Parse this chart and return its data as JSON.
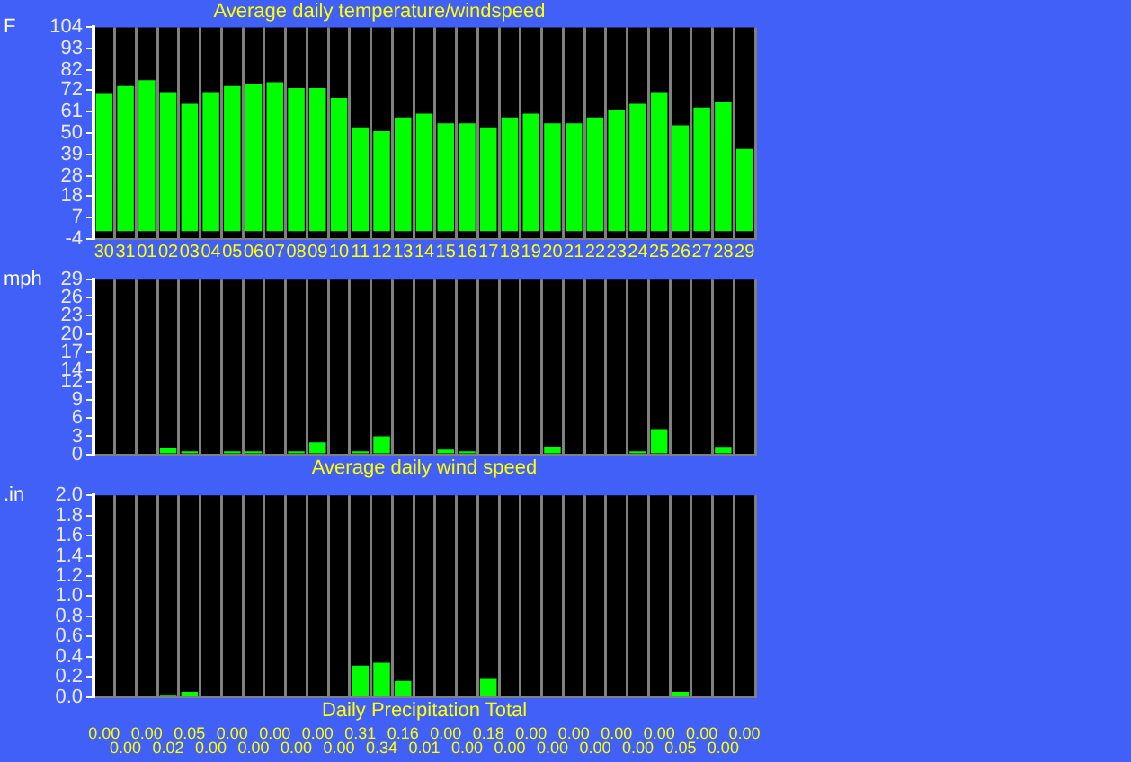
{
  "chart_data": [
    {
      "type": "bar",
      "title": "Average daily temperature/windspeed",
      "ylabel": "F",
      "categories": [
        "30",
        "31",
        "01",
        "02",
        "03",
        "04",
        "05",
        "06",
        "07",
        "08",
        "09",
        "10",
        "11",
        "12",
        "13",
        "14",
        "15",
        "16",
        "17",
        "18",
        "19",
        "20",
        "21",
        "22",
        "23",
        "24",
        "25",
        "26",
        "27",
        "28",
        "29"
      ],
      "values": [
        70,
        74,
        77,
        71,
        65,
        71,
        74,
        75,
        76,
        73,
        73,
        68,
        53,
        51,
        58,
        60,
        55,
        55,
        53,
        58,
        60,
        55,
        55,
        58,
        62,
        65,
        71,
        54,
        63,
        66,
        42
      ],
      "color": "#00ff00",
      "ylim": [
        -4,
        104
      ],
      "yticks": [
        -4,
        7,
        18,
        28,
        39,
        50,
        61,
        72,
        82,
        93,
        104
      ],
      "grid": "x"
    },
    {
      "type": "bar",
      "xlabel": "Average daily wind speed",
      "ylabel": "mph",
      "categories": [
        "30",
        "31",
        "01",
        "02",
        "03",
        "04",
        "05",
        "06",
        "07",
        "08",
        "09",
        "10",
        "11",
        "12",
        "13",
        "14",
        "15",
        "16",
        "17",
        "18",
        "19",
        "20",
        "21",
        "22",
        "23",
        "24",
        "25",
        "26",
        "27",
        "28",
        "29"
      ],
      "values": [
        0,
        0,
        0,
        1,
        0.5,
        0,
        0.5,
        0.5,
        0,
        0.5,
        2,
        0,
        0.5,
        3,
        0,
        0,
        0.8,
        0.5,
        0,
        0,
        0,
        1.3,
        0,
        0,
        0,
        0.5,
        4.2,
        0,
        0,
        1.1,
        0
      ],
      "color": "#00ff00",
      "ylim": [
        0,
        29
      ],
      "yticks": [
        0,
        3,
        6,
        9,
        12,
        14,
        17,
        20,
        23,
        26,
        29
      ],
      "grid": "x",
      "tick_labels": "y"
    },
    {
      "type": "bar",
      "xlabel": "Daily Precipitation Total",
      "ylabel": ".in",
      "categories": [
        "30",
        "31",
        "01",
        "02",
        "03",
        "04",
        "05",
        "06",
        "07",
        "08",
        "09",
        "10",
        "11",
        "12",
        "13",
        "14",
        "15",
        "16",
        "17",
        "18",
        "19",
        "20",
        "21",
        "22",
        "23",
        "24",
        "25",
        "26",
        "27",
        "28",
        "29"
      ],
      "values": [
        0,
        0,
        0,
        0.02,
        0.05,
        0,
        0,
        0,
        0,
        0,
        0,
        0,
        0.31,
        0.34,
        0.16,
        0.01,
        0,
        0,
        0.18,
        0,
        0,
        0,
        0,
        0,
        0,
        0,
        0,
        0.05,
        0,
        0,
        0
      ],
      "value_labels": [
        "0.00",
        "0.00",
        "0.00",
        "0.02",
        "0.05",
        "0.00",
        "0.00",
        "0.00",
        "0.00",
        "0.00",
        "0.00",
        "0.00",
        "0.31",
        "0.34",
        "0.16",
        "0.01",
        "0.00",
        "0.00",
        "0.18",
        "0.00",
        "0.00",
        "0.00",
        "0.00",
        "0.00",
        "0.00",
        "0.00",
        "0.00",
        "0.05",
        "0.00",
        "0.00",
        "0.00"
      ],
      "color": "#00ff00",
      "ylim": [
        0,
        2.0
      ],
      "yticks": [
        {
          "value": 0,
          "label": "0.0"
        },
        {
          "value": 0.2,
          "label": "0.2"
        },
        {
          "value": 0.4,
          "label": "0.4"
        },
        {
          "value": 0.6,
          "label": "0.6"
        },
        {
          "value": 0.8,
          "label": "0.8"
        },
        {
          "value": 1.0,
          "label": "1.0"
        },
        {
          "value": 1.2,
          "label": "1.2"
        },
        {
          "value": 1.4,
          "label": "1.4"
        },
        {
          "value": 1.6,
          "label": "1.6"
        },
        {
          "value": 1.8,
          "label": "1.8"
        },
        {
          "value": 2.0,
          "label": "2.0"
        }
      ],
      "grid": "x",
      "tick_labels": "y"
    }
  ]
}
